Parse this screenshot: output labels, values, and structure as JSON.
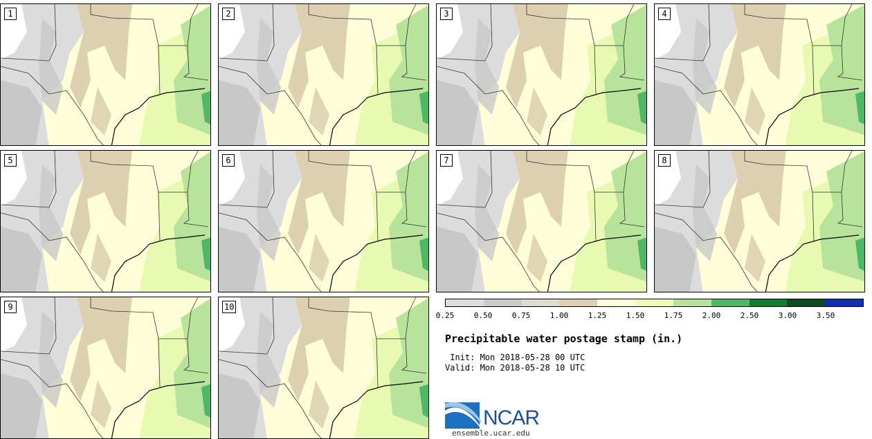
{
  "panels": [
    {
      "number": "1"
    },
    {
      "number": "2"
    },
    {
      "number": "3"
    },
    {
      "number": "4"
    },
    {
      "number": "5"
    },
    {
      "number": "6"
    },
    {
      "number": "7"
    },
    {
      "number": "8"
    },
    {
      "number": "9"
    },
    {
      "number": "10"
    }
  ],
  "colorbar": {
    "ticks": [
      "0.25",
      "0.50",
      "0.75",
      "1.00",
      "1.25",
      "1.50",
      "1.75",
      "2.00",
      "2.50",
      "3.00",
      "3.50"
    ],
    "colors": [
      "#dedede",
      "#cbcbcb",
      "#dcdcd2",
      "#ddd0b0",
      "#fffed8",
      "#eefcb8",
      "#b5e39a",
      "#4db865",
      "#0e7f32",
      "#0b4d21",
      "#1230b0"
    ]
  },
  "title": "Precipitable water postage stamp (in.)",
  "init_line": " Init: Mon 2018-05-28 00 UTC",
  "valid_line": "Valid: Mon 2018-05-28 10 UTC",
  "logo": {
    "text": "NCAR",
    "url": "ensemble.ucar.edu"
  },
  "map_colors": {
    "white": "#ffffff",
    "gray_light": "#dcdcdc",
    "gray_dark": "#c8c8c8",
    "tan": "#ddd0b0",
    "yellow": "#fffed8",
    "green_light": "#e8f9b2",
    "green_mid": "#b8e39b",
    "green_dark": "#4db865"
  }
}
